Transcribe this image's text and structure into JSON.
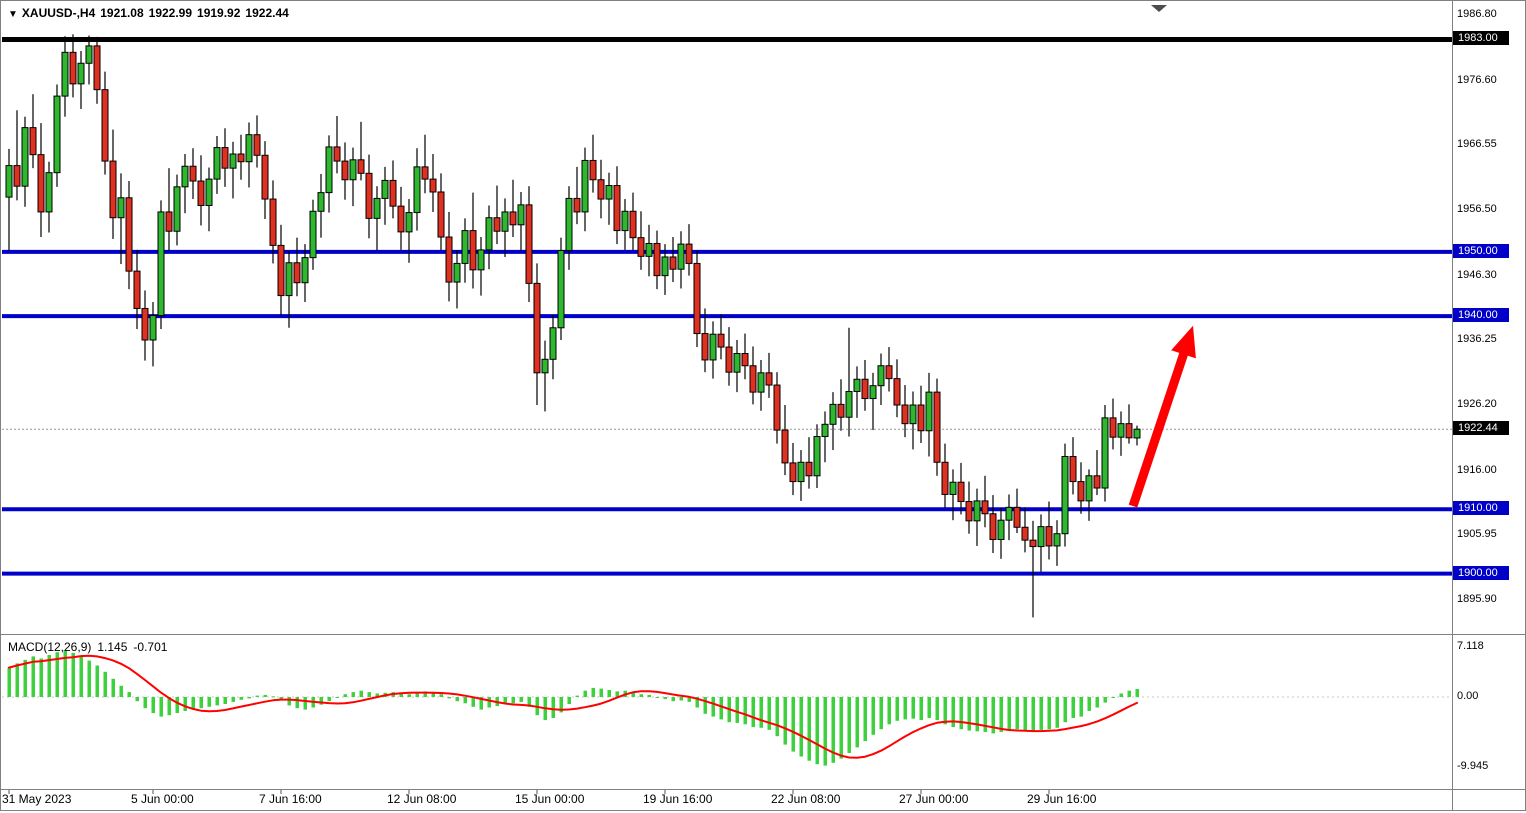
{
  "header": {
    "symbol": "XAUUSD-,H4",
    "open": "1921.08",
    "high": "1922.99",
    "low": "1919.92",
    "close": "1922.44"
  },
  "colors": {
    "bull": "#2eb82e",
    "bear": "#e03020",
    "candle_outline": "#000000",
    "level_blue": "#0000c8",
    "level_black": "#000000",
    "current_price_line": "#999999",
    "macd_histogram": "#3dd23d",
    "macd_signal": "#ff0000",
    "arrow": "#ff0000",
    "frame": "#808080",
    "badge_black": "#000000"
  },
  "chart_data": {
    "type": "candlestick",
    "symbol": "XAUUSD-",
    "timeframe": "H4",
    "ylim": [
      1893,
      1987
    ],
    "ohlc_format": [
      "open",
      "high",
      "low",
      "close"
    ],
    "candles": [
      [
        1958.5,
        1966.0,
        1950.2,
        1963.4
      ],
      [
        1963.4,
        1972.0,
        1958.0,
        1960.2
      ],
      [
        1960.2,
        1971.0,
        1957.0,
        1969.3
      ],
      [
        1969.3,
        1974.5,
        1963.0,
        1965.1
      ],
      [
        1965.1,
        1970.0,
        1952.3,
        1956.2
      ],
      [
        1956.2,
        1964.0,
        1953.0,
        1962.3
      ],
      [
        1962.3,
        1976.0,
        1960.1,
        1974.2
      ],
      [
        1974.2,
        1983.5,
        1971.0,
        1981.0
      ],
      [
        1981.0,
        1983.8,
        1974.0,
        1976.1
      ],
      [
        1976.1,
        1981.2,
        1972.2,
        1979.3
      ],
      [
        1979.3,
        1983.6,
        1976.0,
        1982.0
      ],
      [
        1982.0,
        1983.4,
        1973.0,
        1975.2
      ],
      [
        1975.2,
        1978.0,
        1962.0,
        1964.1
      ],
      [
        1964.1,
        1969.0,
        1952.0,
        1955.3
      ],
      [
        1955.3,
        1962.2,
        1948.1,
        1958.4
      ],
      [
        1958.4,
        1961.0,
        1944.2,
        1947.0
      ],
      [
        1947.0,
        1950.3,
        1938.0,
        1941.2
      ],
      [
        1941.2,
        1944.0,
        1933.1,
        1936.3
      ],
      [
        1936.3,
        1942.2,
        1932.2,
        1940.1
      ],
      [
        1940.1,
        1958.0,
        1938.0,
        1956.2
      ],
      [
        1956.2,
        1963.0,
        1950.1,
        1953.2
      ],
      [
        1953.2,
        1962.0,
        1951.0,
        1960.1
      ],
      [
        1960.1,
        1965.2,
        1956.0,
        1963.3
      ],
      [
        1963.3,
        1966.1,
        1958.2,
        1961.0
      ],
      [
        1961.0,
        1965.0,
        1954.1,
        1957.2
      ],
      [
        1957.2,
        1963.1,
        1953.2,
        1961.3
      ],
      [
        1961.3,
        1968.0,
        1959.0,
        1966.2
      ],
      [
        1966.2,
        1969.2,
        1960.1,
        1963.0
      ],
      [
        1963.0,
        1967.1,
        1958.3,
        1965.2
      ],
      [
        1965.2,
        1968.2,
        1961.2,
        1964.0
      ],
      [
        1964.0,
        1970.1,
        1960.0,
        1968.2
      ],
      [
        1968.2,
        1971.2,
        1963.1,
        1965.0
      ],
      [
        1965.0,
        1967.2,
        1955.1,
        1958.2
      ],
      [
        1958.2,
        1961.1,
        1948.2,
        1951.0
      ],
      [
        1951.0,
        1954.2,
        1940.1,
        1943.2
      ],
      [
        1943.2,
        1950.1,
        1938.2,
        1948.3
      ],
      [
        1948.3,
        1952.2,
        1943.1,
        1945.2
      ],
      [
        1945.2,
        1951.2,
        1942.2,
        1949.1
      ],
      [
        1949.1,
        1958.1,
        1947.2,
        1956.3
      ],
      [
        1956.3,
        1962.1,
        1952.2,
        1959.2
      ],
      [
        1959.2,
        1968.1,
        1956.1,
        1966.3
      ],
      [
        1966.3,
        1971.1,
        1962.2,
        1964.1
      ],
      [
        1964.1,
        1967.0,
        1958.1,
        1961.2
      ],
      [
        1961.2,
        1966.2,
        1957.1,
        1964.3
      ],
      [
        1964.3,
        1970.2,
        1961.1,
        1962.2
      ],
      [
        1962.2,
        1965.1,
        1952.1,
        1955.2
      ],
      [
        1955.2,
        1960.2,
        1950.2,
        1958.3
      ],
      [
        1958.3,
        1963.2,
        1954.2,
        1961.1
      ],
      [
        1961.1,
        1964.2,
        1955.2,
        1957.1
      ],
      [
        1957.1,
        1960.1,
        1950.3,
        1953.1
      ],
      [
        1953.1,
        1958.2,
        1948.3,
        1956.1
      ],
      [
        1956.1,
        1966.1,
        1953.3,
        1963.2
      ],
      [
        1963.2,
        1968.2,
        1959.1,
        1961.3
      ],
      [
        1961.3,
        1965.2,
        1956.2,
        1959.3
      ],
      [
        1959.3,
        1962.2,
        1950.2,
        1952.3
      ],
      [
        1952.3,
        1956.2,
        1942.3,
        1945.3
      ],
      [
        1945.3,
        1950.2,
        1941.2,
        1948.2
      ],
      [
        1948.2,
        1955.2,
        1945.2,
        1953.3
      ],
      [
        1953.3,
        1959.2,
        1944.3,
        1947.2
      ],
      [
        1947.2,
        1952.3,
        1943.2,
        1950.3
      ],
      [
        1950.3,
        1957.2,
        1947.3,
        1955.3
      ],
      [
        1955.3,
        1960.3,
        1951.2,
        1953.2
      ],
      [
        1953.2,
        1958.3,
        1949.2,
        1956.2
      ],
      [
        1956.2,
        1961.2,
        1952.3,
        1954.2
      ],
      [
        1954.2,
        1959.3,
        1950.1,
        1957.3
      ],
      [
        1957.3,
        1960.2,
        1942.2,
        1945.1
      ],
      [
        1945.1,
        1948.2,
        1926.2,
        1931.2
      ],
      [
        1931.2,
        1936.2,
        1925.2,
        1933.3
      ],
      [
        1933.3,
        1940.2,
        1930.2,
        1938.2
      ],
      [
        1938.2,
        1952.2,
        1936.3,
        1950.2
      ],
      [
        1950.2,
        1960.2,
        1947.2,
        1958.3
      ],
      [
        1958.3,
        1963.2,
        1954.3,
        1956.2
      ],
      [
        1956.2,
        1966.2,
        1953.2,
        1964.2
      ],
      [
        1964.2,
        1968.2,
        1959.2,
        1961.2
      ],
      [
        1961.2,
        1964.3,
        1955.2,
        1958.2
      ],
      [
        1958.2,
        1962.3,
        1954.2,
        1960.3
      ],
      [
        1960.3,
        1963.3,
        1951.2,
        1953.3
      ],
      [
        1953.3,
        1958.2,
        1950.3,
        1956.3
      ],
      [
        1956.3,
        1959.2,
        1950.2,
        1952.2
      ],
      [
        1952.2,
        1956.3,
        1947.2,
        1949.3
      ],
      [
        1949.3,
        1954.2,
        1946.2,
        1951.3
      ],
      [
        1951.3,
        1953.3,
        1944.2,
        1946.3
      ],
      [
        1946.3,
        1951.2,
        1943.3,
        1949.2
      ],
      [
        1949.2,
        1952.3,
        1945.3,
        1947.3
      ],
      [
        1947.3,
        1953.2,
        1944.3,
        1951.2
      ],
      [
        1951.2,
        1954.3,
        1946.3,
        1948.2
      ],
      [
        1948.2,
        1950.2,
        1935.2,
        1937.3
      ],
      [
        1937.3,
        1941.2,
        1931.3,
        1933.2
      ],
      [
        1933.2,
        1939.2,
        1930.3,
        1937.2
      ],
      [
        1937.2,
        1940.3,
        1933.3,
        1935.2
      ],
      [
        1935.2,
        1938.3,
        1929.2,
        1931.3
      ],
      [
        1931.3,
        1936.3,
        1928.2,
        1934.2
      ],
      [
        1934.2,
        1937.3,
        1930.2,
        1932.3
      ],
      [
        1932.3,
        1935.3,
        1926.3,
        1928.2
      ],
      [
        1928.2,
        1933.2,
        1925.3,
        1931.2
      ],
      [
        1931.2,
        1934.3,
        1927.3,
        1929.3
      ],
      [
        1929.3,
        1931.3,
        1920.2,
        1922.3
      ],
      [
        1922.3,
        1926.2,
        1915.3,
        1917.2
      ],
      [
        1917.2,
        1920.3,
        1912.2,
        1914.3
      ],
      [
        1914.3,
        1919.2,
        1911.3,
        1917.3
      ],
      [
        1917.3,
        1921.2,
        1913.2,
        1915.2
      ],
      [
        1915.2,
        1923.2,
        1913.3,
        1921.3
      ],
      [
        1921.3,
        1925.2,
        1917.3,
        1923.2
      ],
      [
        1923.2,
        1928.2,
        1919.2,
        1926.3
      ],
      [
        1926.3,
        1930.2,
        1922.2,
        1924.3
      ],
      [
        1924.3,
        1938.2,
        1921.3,
        1928.3
      ],
      [
        1928.3,
        1932.2,
        1924.2,
        1930.2
      ],
      [
        1930.2,
        1933.2,
        1925.3,
        1927.2
      ],
      [
        1927.2,
        1931.2,
        1922.3,
        1929.2
      ],
      [
        1929.2,
        1934.2,
        1926.2,
        1932.3
      ],
      [
        1932.3,
        1935.2,
        1928.3,
        1930.3
      ],
      [
        1930.3,
        1933.3,
        1924.3,
        1926.2
      ],
      [
        1926.2,
        1929.3,
        1921.2,
        1923.3
      ],
      [
        1923.3,
        1928.3,
        1919.3,
        1926.2
      ],
      [
        1926.2,
        1929.2,
        1920.3,
        1922.2
      ],
      [
        1922.2,
        1931.2,
        1918.2,
        1928.2
      ],
      [
        1928.2,
        1930.3,
        1915.2,
        1917.3
      ],
      [
        1917.3,
        1920.2,
        1910.2,
        1912.3
      ],
      [
        1912.3,
        1916.2,
        1908.3,
        1914.2
      ],
      [
        1914.2,
        1917.2,
        1909.2,
        1911.2
      ],
      [
        1911.2,
        1914.3,
        1906.2,
        1908.2
      ],
      [
        1908.2,
        1913.2,
        1904.3,
        1911.3
      ],
      [
        1911.3,
        1915.2,
        1907.2,
        1909.3
      ],
      [
        1909.3,
        1912.2,
        1903.2,
        1905.3
      ],
      [
        1905.3,
        1910.2,
        1902.3,
        1908.3
      ],
      [
        1908.3,
        1912.3,
        1905.2,
        1910.3
      ],
      [
        1910.3,
        1913.2,
        1906.3,
        1907.2
      ],
      [
        1907.2,
        1910.3,
        1903.3,
        1905.2
      ],
      [
        1905.2,
        1908.2,
        1893.2,
        1904.2
      ],
      [
        1904.2,
        1909.2,
        1900.3,
        1907.3
      ],
      [
        1907.3,
        1911.2,
        1902.2,
        1904.3
      ],
      [
        1904.3,
        1908.3,
        1901.2,
        1906.2
      ],
      [
        1906.2,
        1920.2,
        1904.2,
        1918.2
      ],
      [
        1918.2,
        1921.2,
        1912.3,
        1914.3
      ],
      [
        1914.3,
        1917.3,
        1909.3,
        1911.3
      ],
      [
        1911.3,
        1916.2,
        1908.2,
        1915.2
      ],
      [
        1915.2,
        1919.2,
        1912.2,
        1913.3
      ],
      [
        1913.3,
        1926.2,
        1911.2,
        1924.2
      ],
      [
        1924.2,
        1927.2,
        1919.3,
        1921.2
      ],
      [
        1921.2,
        1925.2,
        1918.3,
        1923.3
      ],
      [
        1923.3,
        1926.3,
        1920.2,
        1921.1
      ],
      [
        1921.08,
        1922.99,
        1919.92,
        1922.44
      ]
    ],
    "horizontal_levels": [
      {
        "price": 1983.0,
        "label": "1983.00",
        "color": "#000000",
        "width": 5
      },
      {
        "price": 1950.0,
        "label": "1950.00",
        "color": "#0000c8",
        "width": 4
      },
      {
        "price": 1940.0,
        "label": "1940.00",
        "color": "#0000c8",
        "width": 4
      },
      {
        "price": 1910.0,
        "label": "1910.00",
        "color": "#0000c8",
        "width": 4
      },
      {
        "price": 1900.0,
        "label": "1900.00",
        "color": "#0000c8",
        "width": 4
      }
    ],
    "current_price": {
      "price": 1922.44,
      "label": "1922.44"
    },
    "price_axis_ticks": [
      {
        "label": "1986.80",
        "price": 1986.8
      },
      {
        "label": "1976.60",
        "price": 1976.6
      },
      {
        "label": "1966.55",
        "price": 1966.55
      },
      {
        "label": "1956.50",
        "price": 1956.5
      },
      {
        "label": "1946.30",
        "price": 1946.3
      },
      {
        "label": "1936.25",
        "price": 1936.25
      },
      {
        "label": "1926.20",
        "price": 1926.2
      },
      {
        "label": "1916.00",
        "price": 1916.0
      },
      {
        "label": "1905.95",
        "price": 1905.95
      },
      {
        "label": "1895.90",
        "price": 1895.9
      }
    ],
    "time_axis_ticks": [
      {
        "label": "31 May 2023",
        "index": 0
      },
      {
        "label": "5 Jun 00:00",
        "index": 18
      },
      {
        "label": "7 Jun 16:00",
        "index": 34
      },
      {
        "label": "12 Jun 08:00",
        "index": 50
      },
      {
        "label": "15 Jun 00:00",
        "index": 66
      },
      {
        "label": "19 Jun 16:00",
        "index": 82
      },
      {
        "label": "22 Jun 08:00",
        "index": 98
      },
      {
        "label": "27 Jun 00:00",
        "index": 114
      },
      {
        "label": "29 Jun 16:00",
        "index": 130
      }
    ],
    "indicator": {
      "type": "macd_histogram",
      "label": "MACD(12,26,9)",
      "main_value": 1.145,
      "signal_value": -0.701,
      "main_value_text": "1.145",
      "signal_value_text": "-0.701",
      "signal_smoothing": 9,
      "axis_ticks": [
        {
          "label": "7.118",
          "value": 7.118
        },
        {
          "label": "0.00",
          "value": 0.0
        },
        {
          "label": "-9.945",
          "value": -9.945
        }
      ],
      "histogram": [
        4.2,
        4.8,
        5.3,
        5.8,
        5.5,
        6.0,
        6.4,
        6.7,
        6.3,
        5.8,
        5.2,
        4.5,
        3.6,
        2.6,
        1.6,
        0.7,
        -0.6,
        -1.6,
        -2.3,
        -2.8,
        -2.6,
        -2.3,
        -2.0,
        -1.8,
        -1.6,
        -1.4,
        -1.2,
        -1.0,
        -0.7,
        -0.4,
        -0.2,
        0.2,
        0.3,
        0.1,
        -0.5,
        -1.2,
        -1.6,
        -1.8,
        -1.5,
        -1.1,
        -0.6,
        -0.1,
        0.4,
        0.7,
        0.9,
        0.7,
        0.5,
        0.6,
        0.7,
        0.5,
        0.4,
        0.6,
        0.8,
        0.7,
        0.4,
        -0.2,
        -0.6,
        -0.9,
        -1.4,
        -1.8,
        -1.5,
        -1.3,
        -1.0,
        -0.9,
        -0.7,
        -1.4,
        -2.6,
        -3.3,
        -3.0,
        -2.2,
        -1.0,
        0.2,
        0.9,
        1.3,
        1.2,
        1.0,
        0.8,
        0.9,
        0.7,
        0.4,
        0.3,
        0.0,
        -0.3,
        -0.6,
        -0.5,
        -0.7,
        -1.5,
        -2.4,
        -2.8,
        -3.2,
        -3.6,
        -3.7,
        -3.9,
        -4.3,
        -4.4,
        -4.7,
        -5.6,
        -6.8,
        -7.8,
        -8.5,
        -9.1,
        -9.6,
        -9.8,
        -9.4,
        -8.8,
        -8.0,
        -7.2,
        -6.3,
        -5.4,
        -4.6,
        -3.9,
        -3.4,
        -3.2,
        -3.1,
        -3.3,
        -3.0,
        -3.3,
        -3.9,
        -4.3,
        -4.6,
        -4.8,
        -4.9,
        -5.0,
        -5.2,
        -5.0,
        -4.7,
        -4.6,
        -4.7,
        -5.0,
        -4.7,
        -4.6,
        -4.4,
        -3.6,
        -3.0,
        -2.8,
        -2.0,
        -1.5,
        -0.8,
        0.0,
        0.5,
        0.9,
        1.145
      ]
    },
    "annotation_arrow": {
      "from_index": 140.5,
      "from_price": 1910.5,
      "to_index": 148.0,
      "to_price": 1938.5,
      "color": "#ff0000",
      "width": 9
    }
  }
}
